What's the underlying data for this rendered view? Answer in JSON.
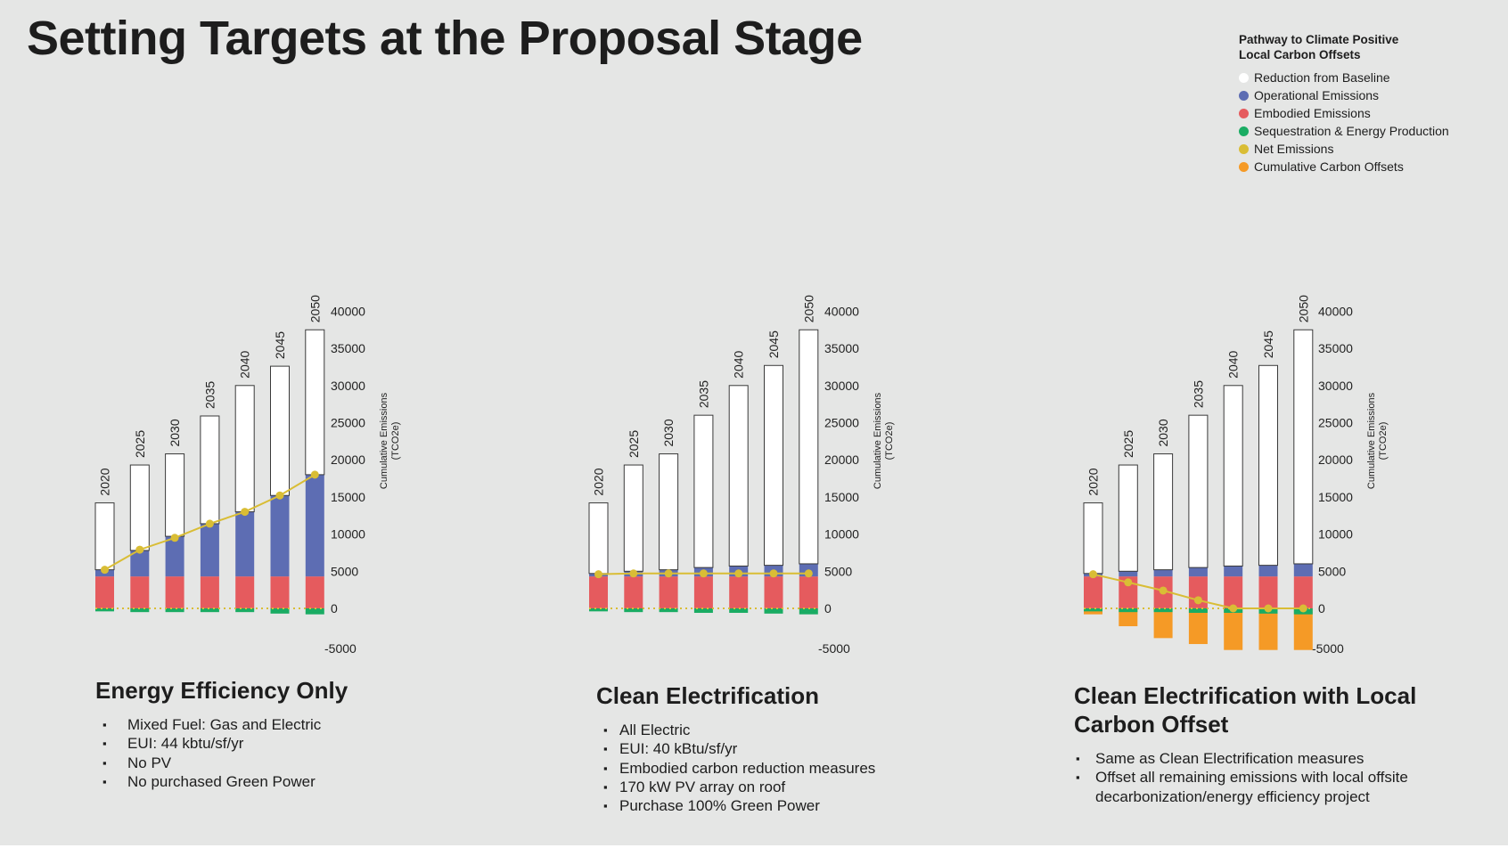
{
  "title": "Setting Targets at the Proposal Stage",
  "legend": {
    "title_line1": "Pathway to Climate Positive",
    "title_line2": "Local Carbon Offsets",
    "items": [
      {
        "label": "Reduction from Baseline",
        "color": "#ffffff"
      },
      {
        "label": "Operational Emissions",
        "color": "#5d6db3"
      },
      {
        "label": "Embodied Emissions",
        "color": "#e55b5e"
      },
      {
        "label": "Sequestration & Energy Production",
        "color": "#1aac63"
      },
      {
        "label": "Net Emissions",
        "color": "#d9bd35"
      },
      {
        "label": "Cumulative Carbon Offsets",
        "color": "#f59a26"
      }
    ]
  },
  "chart_data": [
    {
      "type": "bar",
      "title": "Energy Efficiency Only",
      "categories": [
        "2020",
        "2025",
        "2030",
        "2035",
        "2040",
        "2045",
        "2050"
      ],
      "ylabel_line1": "Cumulative Emissions",
      "ylabel_line2": "(TCO2e)",
      "ylim": [
        -5000,
        40000
      ],
      "ticks": [
        "40000",
        "35000",
        "30000",
        "25000",
        "20000",
        "15000",
        "10000",
        "5000",
        "0",
        "-5000"
      ],
      "series": [
        {
          "name": "Embodied Emissions",
          "values": [
            4300,
            4300,
            4300,
            4300,
            4300,
            4300,
            4300
          ]
        },
        {
          "name": "Operational Emissions",
          "values": [
            900,
            3500,
            5400,
            7100,
            8700,
            10900,
            13700
          ]
        },
        {
          "name": "Reduction from Baseline",
          "values": [
            9000,
            11500,
            11100,
            14500,
            17000,
            17400,
            19500
          ]
        },
        {
          "name": "Sequestration & Energy Production",
          "values": [
            -400,
            -500,
            -500,
            -500,
            -500,
            -700,
            -800
          ]
        },
        {
          "name": "Cumulative Carbon Offsets",
          "values": [
            0,
            0,
            0,
            0,
            0,
            0,
            0
          ]
        },
        {
          "name": "Net Emissions",
          "values": [
            5200,
            7900,
            9500,
            11400,
            13000,
            15200,
            18000
          ]
        }
      ],
      "bullets": [
        "Mixed Fuel: Gas and Electric",
        "EUI: 44 kbtu/sf/yr",
        "No PV",
        "No purchased Green Power"
      ]
    },
    {
      "type": "bar",
      "title": "Clean Electrification",
      "categories": [
        "2020",
        "2025",
        "2030",
        "2035",
        "2040",
        "2045",
        "2050"
      ],
      "ylabel_line1": "Cumulative Emissions",
      "ylabel_line2": "(TCO2e)",
      "ylim": [
        -5000,
        40000
      ],
      "ticks": [
        "40000",
        "35000",
        "30000",
        "25000",
        "20000",
        "15000",
        "10000",
        "5000",
        "0",
        "-5000"
      ],
      "series": [
        {
          "name": "Embodied Emissions",
          "values": [
            4300,
            4300,
            4300,
            4300,
            4300,
            4300,
            4300
          ]
        },
        {
          "name": "Operational Emissions",
          "values": [
            400,
            700,
            900,
            1200,
            1400,
            1500,
            1700
          ]
        },
        {
          "name": "Reduction from Baseline",
          "values": [
            9500,
            14300,
            15600,
            20500,
            24300,
            26900,
            31500
          ]
        },
        {
          "name": "Sequestration & Energy Production",
          "values": [
            -400,
            -500,
            -500,
            -600,
            -600,
            -700,
            -800
          ]
        },
        {
          "name": "Cumulative Carbon Offsets",
          "values": [
            0,
            0,
            0,
            0,
            0,
            0,
            0
          ]
        },
        {
          "name": "Net Emissions",
          "values": [
            4600,
            4700,
            4700,
            4700,
            4700,
            4700,
            4700
          ]
        }
      ],
      "bullets": [
        "All Electric",
        "EUI: 40 kBtu/sf/yr",
        "Embodied carbon reduction measures",
        "170 kW PV array on roof",
        "Purchase 100% Green Power"
      ]
    },
    {
      "type": "bar",
      "title": "Clean Electrification with Local Carbon Offset",
      "categories": [
        "2020",
        "2025",
        "2030",
        "2035",
        "2040",
        "2045",
        "2050"
      ],
      "ylabel_line1": "Cumulative Emissions",
      "ylabel_line2": "(TCO2e)",
      "ylim": [
        -5000,
        40000
      ],
      "ticks": [
        "40000",
        "35000",
        "30000",
        "25000",
        "20000",
        "15000",
        "10000",
        "5000",
        "0",
        "-5000"
      ],
      "series": [
        {
          "name": "Embodied Emissions",
          "values": [
            4300,
            4300,
            4300,
            4300,
            4300,
            4300,
            4300
          ]
        },
        {
          "name": "Operational Emissions",
          "values": [
            400,
            700,
            900,
            1200,
            1400,
            1500,
            1700
          ]
        },
        {
          "name": "Reduction from Baseline",
          "values": [
            9500,
            14300,
            15600,
            20500,
            24300,
            26900,
            31500
          ]
        },
        {
          "name": "Sequestration & Energy Production",
          "values": [
            -400,
            -500,
            -500,
            -600,
            -600,
            -700,
            -800
          ]
        },
        {
          "name": "Cumulative Carbon Offsets",
          "values": [
            -800,
            -2400,
            -4000,
            -4800,
            -5600,
            -5600,
            -5600
          ]
        },
        {
          "name": "Net Emissions",
          "values": [
            4600,
            3500,
            2400,
            1100,
            0,
            0,
            0
          ]
        }
      ],
      "bullets": [
        "Same as Clean Electrification measures",
        "Offset all remaining emissions with local offsite decarbonization/energy efficiency project"
      ]
    }
  ]
}
